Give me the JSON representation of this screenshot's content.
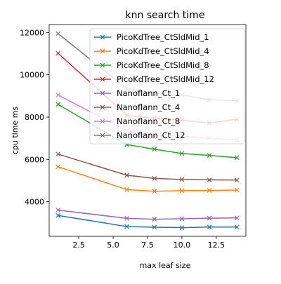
{
  "chart_data": {
    "type": "line",
    "title": "knn search time",
    "xlabel": "max leaf size",
    "ylabel": "cpu time ms",
    "xlim": [
      0.35,
      14.65
    ],
    "ylim": [
      2360,
      12380
    ],
    "xticks": [
      2.5,
      5.0,
      7.5,
      10.0,
      12.5
    ],
    "xtick_labels": [
      "2.5",
      "5.0",
      "7.5",
      "10.0",
      "12.5"
    ],
    "yticks": [
      4000,
      6000,
      8000,
      10000,
      12000
    ],
    "ytick_labels": [
      "4000",
      "6000",
      "8000",
      "10000",
      "12000"
    ],
    "grid": false,
    "legend_position": "upper-center",
    "marker": "x",
    "x": [
      1,
      6,
      8,
      10,
      12,
      14
    ],
    "series": [
      {
        "name": "PicoKdTree_CtSldMid_1",
        "color": "#1f77b4",
        "values": [
          3350,
          2820,
          2790,
          2770,
          2800,
          2800
        ]
      },
      {
        "name": "PicoKdTree_CtSldMid_4",
        "color": "#ff7f0e",
        "values": [
          5650,
          4570,
          4490,
          4520,
          4530,
          4550
        ]
      },
      {
        "name": "PicoKdTree_CtSldMid_8",
        "color": "#2ca02c",
        "values": [
          8600,
          6700,
          6480,
          6280,
          6190,
          6080
        ]
      },
      {
        "name": "PicoKdTree_CtSldMid_12",
        "color": "#d62728",
        "values": [
          11020,
          8080,
          7950,
          7850,
          7720,
          7900
        ]
      },
      {
        "name": "Nanoflann_Ct_1",
        "color": "#9467bd",
        "values": [
          3600,
          3210,
          3170,
          3190,
          3220,
          3230
        ]
      },
      {
        "name": "Nanoflann_Ct_4",
        "color": "#8c564b",
        "values": [
          6250,
          5250,
          5100,
          5050,
          5030,
          5020
        ]
      },
      {
        "name": "Nanoflann_Ct_8",
        "color": "#e377c2",
        "values": [
          9050,
          7350,
          7120,
          7100,
          7000,
          6920
        ]
      },
      {
        "name": "Nanoflann_Ct_12",
        "color": "#7f7f7f",
        "values": [
          11950,
          9350,
          9120,
          9050,
          8820,
          8780
        ]
      }
    ]
  }
}
